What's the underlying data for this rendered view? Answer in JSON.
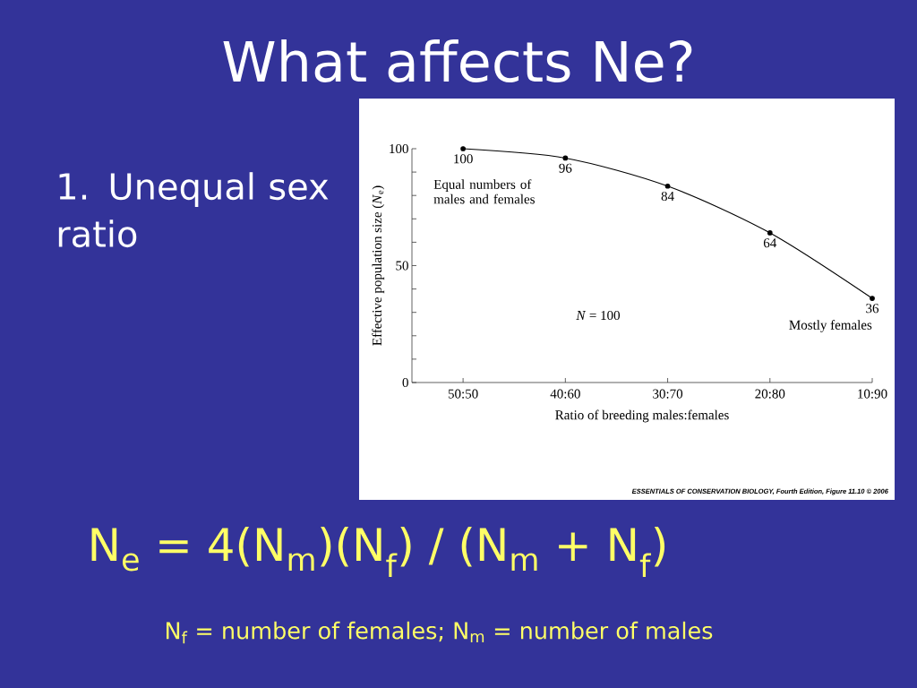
{
  "chart_data": {
    "type": "line",
    "title": "What affects Ne?",
    "subtitle": "1. Unequal sex ratio",
    "xlabel": "Ratio of breeding males:females",
    "ylabel": "Effective population size (*N*$_{e}$)",
    "categories": [
      "50:50",
      "40:60",
      "30:70",
      "20:80",
      "10:90"
    ],
    "values": [
      100,
      96,
      84,
      64,
      36
    ],
    "color": "#000000",
    "marker": "circle",
    "line_style": "solid",
    "data_labels": true,
    "ylim": [
      0,
      100
    ],
    "yticks": [
      0,
      {
        "value": 10,
        "label": null
      },
      {
        "value": 20,
        "label": null
      },
      {
        "value": 30,
        "label": null
      },
      {
        "value": 40,
        "label": null
      },
      50,
      {
        "value": 60,
        "label": null
      },
      {
        "value": 70,
        "label": null
      },
      {
        "value": 80,
        "label": null
      },
      {
        "value": 90,
        "label": null
      },
      100
    ],
    "annotations": [
      "Equal numbers of males and females",
      "*N* = 100",
      "Mostly females",
      "ESSENTIALS OF CONSERVATION BIOLOGY, Fourth Edition, Figure 11.10 © 2006",
      "N$_{e}$ = 4(N$_{m}$)(N$_{f}$) / (N$_{m}$ + N$_{f}$)",
      "N$_{f}$ = number of females; N$_{m}$ = number of males"
    ]
  }
}
